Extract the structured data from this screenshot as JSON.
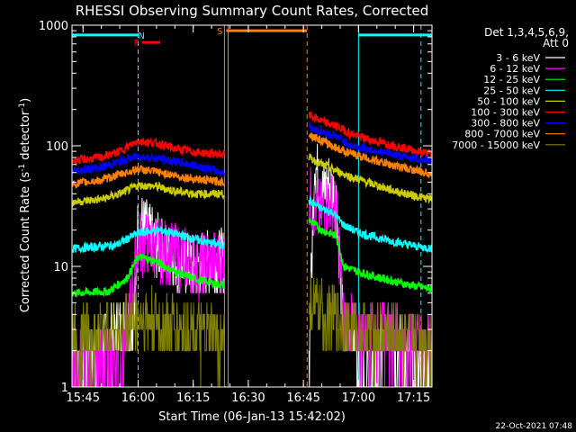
{
  "chart_data": {
    "type": "line",
    "title": "RHESSI Observing Summary Count Rates, Corrected",
    "xlabel": "Start Time (06-Jan-13 15:42:02)",
    "ylabel_main": "Corrected Count Rate (s",
    "ylabel_sup": "-1",
    "ylabel_tail": " detector",
    "ylabel_sup2": "-1",
    "ylabel_end": ")",
    "yscale": "log",
    "ylim": [
      1,
      1000
    ],
    "xlim_minutes": [
      942,
      1040
    ],
    "x_ticks": [
      {
        "label": "15:45",
        "minute": 945
      },
      {
        "label": "16:00",
        "minute": 960
      },
      {
        "label": "16:15",
        "minute": 975
      },
      {
        "label": "16:30",
        "minute": 990
      },
      {
        "label": "16:45",
        "minute": 1005
      },
      {
        "label": "17:00",
        "minute": 1020
      },
      {
        "label": "17:15",
        "minute": 1035
      }
    ],
    "y_ticks": [
      {
        "label": "1",
        "value": 1
      },
      {
        "label": "10",
        "value": 10
      },
      {
        "label": "100",
        "value": 100
      },
      {
        "label": "1000",
        "value": 1000
      }
    ],
    "legend": {
      "header": [
        "Det 1,3,4,5,6,9,",
        "Att 0"
      ],
      "placement": "right"
    },
    "footer_date": "22-Oct-2021 07:48",
    "segments": [
      [
        942,
        983.5
      ],
      [
        1006.5,
        1040
      ]
    ],
    "series": [
      {
        "name": "3 - 6 keV",
        "color": "#ffffff",
        "kind": "low",
        "seg1": [
          [
            942,
            1.5
          ],
          [
            956,
            3.0
          ],
          [
            959,
            3.5
          ],
          [
            960,
            25
          ],
          [
            962,
            20
          ],
          [
            965,
            15
          ],
          [
            968,
            13
          ],
          [
            972,
            11
          ],
          [
            975,
            10
          ],
          [
            978,
            11
          ]
        ],
        "seg2": [
          [
            1006.5,
            1.5
          ],
          [
            1008,
            75
          ],
          [
            1010,
            40
          ],
          [
            1012,
            50
          ],
          [
            1014,
            35
          ],
          [
            1016,
            2.5
          ],
          [
            1018,
            3.5
          ],
          [
            1020,
            1.4
          ],
          [
            1024,
            1.3
          ],
          [
            1028,
            2.8
          ],
          [
            1034,
            1.5
          ],
          [
            1040,
            1.2
          ]
        ]
      },
      {
        "name": "6 - 12 keV",
        "color": "#ff00ff",
        "kind": "low",
        "seg1": [
          [
            942,
            1.5
          ],
          [
            956,
            1.6
          ],
          [
            960,
            16
          ],
          [
            963,
            15
          ],
          [
            967,
            13
          ],
          [
            972,
            12
          ],
          [
            976,
            10
          ],
          [
            980,
            11
          ]
        ],
        "seg2": [
          [
            1006.5,
            40
          ],
          [
            1008,
            30
          ],
          [
            1010,
            28
          ],
          [
            1012,
            35
          ],
          [
            1014,
            28
          ],
          [
            1016,
            3.5
          ],
          [
            1020,
            2.5
          ],
          [
            1028,
            2.7
          ],
          [
            1034,
            2.4
          ],
          [
            1040,
            2.2
          ]
        ]
      },
      {
        "name": "12 - 25 keV",
        "color": "#00ff00",
        "kind": "mid",
        "seg1": [
          [
            942,
            6
          ],
          [
            952,
            6.2
          ],
          [
            957,
            8
          ],
          [
            960,
            12
          ],
          [
            965,
            11
          ],
          [
            970,
            9
          ],
          [
            975,
            8
          ],
          [
            983,
            7
          ]
        ],
        "seg2": [
          [
            1006.5,
            24
          ],
          [
            1010,
            20
          ],
          [
            1014,
            18
          ],
          [
            1016,
            10
          ],
          [
            1020,
            9
          ],
          [
            1026,
            8
          ],
          [
            1034,
            7
          ],
          [
            1040,
            6.5
          ]
        ]
      },
      {
        "name": "25 - 50 keV",
        "color": "#00ffff",
        "kind": "mid",
        "seg1": [
          [
            942,
            14
          ],
          [
            954,
            15
          ],
          [
            960,
            19
          ],
          [
            966,
            20
          ],
          [
            972,
            18
          ],
          [
            978,
            16
          ],
          [
            983,
            15
          ]
        ],
        "seg2": [
          [
            1006.5,
            35
          ],
          [
            1010,
            30
          ],
          [
            1013,
            28
          ],
          [
            1016,
            22
          ],
          [
            1020,
            19
          ],
          [
            1026,
            17
          ],
          [
            1034,
            15
          ],
          [
            1040,
            14
          ]
        ]
      },
      {
        "name": "50 - 100 keV",
        "color": "#cccc00",
        "kind": "mid",
        "seg1": [
          [
            942,
            34
          ],
          [
            950,
            36
          ],
          [
            955,
            40
          ],
          [
            960,
            47
          ],
          [
            965,
            46
          ],
          [
            970,
            42
          ],
          [
            976,
            40
          ],
          [
            983,
            40
          ]
        ],
        "seg2": [
          [
            1006.5,
            80
          ],
          [
            1010,
            70
          ],
          [
            1014,
            62
          ],
          [
            1018,
            55
          ],
          [
            1024,
            48
          ],
          [
            1030,
            42
          ],
          [
            1036,
            38
          ],
          [
            1040,
            36
          ]
        ]
      },
      {
        "name": "100 - 300 keV",
        "color": "#ff0000",
        "kind": "mid",
        "seg1": [
          [
            942,
            75
          ],
          [
            950,
            80
          ],
          [
            955,
            90
          ],
          [
            960,
            110
          ],
          [
            965,
            105
          ],
          [
            970,
            95
          ],
          [
            976,
            88
          ],
          [
            983,
            85
          ]
        ],
        "seg2": [
          [
            1006.5,
            180
          ],
          [
            1010,
            160
          ],
          [
            1014,
            145
          ],
          [
            1018,
            125
          ],
          [
            1024,
            110
          ],
          [
            1030,
            100
          ],
          [
            1036,
            90
          ],
          [
            1040,
            85
          ]
        ]
      },
      {
        "name": "300 - 800 keV",
        "color": "#0000ff",
        "kind": "mid",
        "seg1": [
          [
            942,
            62
          ],
          [
            950,
            66
          ],
          [
            955,
            74
          ],
          [
            960,
            82
          ],
          [
            966,
            78
          ],
          [
            972,
            72
          ],
          [
            978,
            66
          ],
          [
            983,
            60
          ]
        ],
        "seg2": [
          [
            1006.5,
            145
          ],
          [
            1010,
            130
          ],
          [
            1014,
            120
          ],
          [
            1018,
            100
          ],
          [
            1024,
            92
          ],
          [
            1030,
            84
          ],
          [
            1036,
            78
          ],
          [
            1040,
            75
          ]
        ]
      },
      {
        "name": "800 - 7000 keV",
        "color": "#ff8000",
        "kind": "mid",
        "seg1": [
          [
            942,
            48
          ],
          [
            950,
            52
          ],
          [
            955,
            58
          ],
          [
            960,
            64
          ],
          [
            966,
            60
          ],
          [
            972,
            55
          ],
          [
            978,
            52
          ],
          [
            983,
            50
          ]
        ],
        "seg2": [
          [
            1006.5,
            125
          ],
          [
            1010,
            110
          ],
          [
            1014,
            96
          ],
          [
            1018,
            86
          ],
          [
            1024,
            76
          ],
          [
            1030,
            68
          ],
          [
            1036,
            62
          ],
          [
            1040,
            58
          ]
        ]
      },
      {
        "name": "7000 - 15000 keV",
        "color": "#808000",
        "kind": "low",
        "seg1": [
          [
            942,
            2.5
          ],
          [
            950,
            2.7
          ],
          [
            955,
            3.0
          ],
          [
            960,
            3.7
          ],
          [
            966,
            3.3
          ],
          [
            972,
            3.0
          ],
          [
            978,
            2.6
          ],
          [
            983,
            2.5
          ]
        ],
        "seg2": [
          [
            1006.5,
            5
          ],
          [
            1010,
            4
          ],
          [
            1014,
            3.5
          ],
          [
            1018,
            3.0
          ],
          [
            1024,
            2.7
          ],
          [
            1030,
            2.6
          ],
          [
            1036,
            2.5
          ],
          [
            1040,
            2.4
          ]
        ]
      }
    ],
    "flags": [
      {
        "name": "N",
        "color": "#00ffff",
        "x1": 942,
        "x2": 960,
        "level": 830
      },
      {
        "name": "N",
        "color": "#00ffff",
        "x1": 1020,
        "x2": 1040,
        "level": 830
      },
      {
        "name": "F",
        "color": "#ff0000",
        "x1": 961,
        "x2": 966,
        "level": 720
      },
      {
        "name": "S",
        "color": "#ff8000",
        "x1": 984,
        "x2": 1006,
        "level": 900
      }
    ],
    "markers": [
      {
        "minute": 960,
        "color": "#00ffff",
        "style": "dashed"
      },
      {
        "minute": 983.5,
        "color": "#ff8000",
        "style": "solid"
      },
      {
        "minute": 984.5,
        "color": "#ff8000",
        "style": "solid"
      },
      {
        "minute": 1006,
        "color": "#ff8000",
        "style": "dashed"
      },
      {
        "minute": 1020,
        "color": "#00ffff",
        "style": "solid"
      },
      {
        "minute": 1037,
        "color": "#00ffff",
        "style": "dashed"
      },
      {
        "minute": 942,
        "color": "#00ffff",
        "style": "solid"
      }
    ],
    "grid": false
  }
}
